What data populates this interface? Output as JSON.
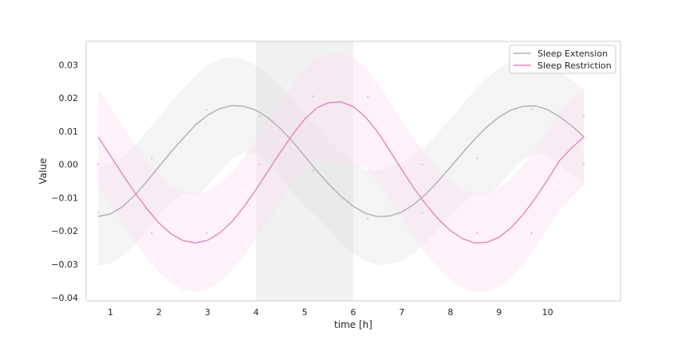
{
  "chart_data": {
    "type": "line",
    "title": "",
    "xlabel": "time [h]",
    "ylabel": "Value",
    "xlim": [
      0.5,
      11.5
    ],
    "ylim": [
      -0.041,
      0.037
    ],
    "x_ticks": [
      1,
      2,
      3,
      4,
      5,
      6,
      7,
      8,
      9,
      10
    ],
    "y_ticks": [
      0.03,
      0.02,
      0.01,
      0.0,
      -0.01,
      -0.02,
      -0.03,
      -0.04
    ],
    "y_tick_labels": [
      "0.03",
      "0.02",
      "0.01",
      "0.00",
      "−0.01",
      "−0.02",
      "−0.03",
      "−0.04"
    ],
    "grid": false,
    "legend_position": "upper right",
    "shaded_region": {
      "x_start": 4,
      "x_end": 6,
      "color": "#bdbdbd"
    },
    "series": [
      {
        "name": "Sleep Extension",
        "color": "#b3b3b3",
        "band_color": "#d9d9d9",
        "x": [
          0.75,
          1.0,
          1.25,
          1.5,
          1.75,
          2.0,
          2.25,
          2.5,
          2.75,
          3.0,
          3.25,
          3.5,
          3.75,
          4.0,
          4.25,
          4.5,
          4.75,
          5.0,
          5.25,
          5.5,
          5.75,
          6.0,
          6.25,
          6.5,
          6.75,
          7.0,
          7.25,
          7.5,
          7.75,
          8.0,
          8.25,
          8.5,
          8.75,
          9.0,
          9.25,
          9.5,
          9.75,
          10.0,
          10.25,
          10.5,
          10.75
        ],
        "y": [
          -0.0156,
          -0.0149,
          -0.0127,
          -0.0093,
          -0.0051,
          -0.0006,
          0.0038,
          0.0079,
          0.0119,
          0.0148,
          0.0168,
          0.0177,
          0.0175,
          0.0163,
          0.014,
          0.0108,
          0.0069,
          0.0025,
          -0.0019,
          -0.006,
          -0.0096,
          -0.0126,
          -0.0147,
          -0.0157,
          -0.0155,
          -0.0143,
          -0.012,
          -0.0088,
          -0.005,
          -0.0008,
          0.0035,
          0.0076,
          0.0113,
          0.0143,
          0.0164,
          0.0175,
          0.0176,
          0.0165,
          0.0143,
          0.0116,
          0.0083
        ],
        "lower": [
          -0.0305,
          -0.0298,
          -0.0276,
          -0.0242,
          -0.02,
          -0.0155,
          -0.0111,
          -0.0086,
          -0.0095,
          -0.0066,
          -0.0021,
          0.0016,
          0.0035,
          0.0029,
          0.0002,
          -0.004,
          -0.0085,
          -0.0125,
          -0.0155,
          -0.0195,
          -0.0237,
          -0.0268,
          -0.029,
          -0.0302,
          -0.03,
          -0.0289,
          -0.0266,
          -0.0234,
          -0.0196,
          -0.0154,
          -0.0115,
          -0.0088,
          -0.0092,
          -0.0064,
          -0.0021,
          0.0016,
          0.0034,
          0.0026,
          0.0,
          -0.0031,
          -0.0059
        ],
        "upper": [
          -0.0007,
          0.0,
          0.0022,
          0.0056,
          0.0098,
          0.0143,
          0.0187,
          0.0228,
          0.0268,
          0.0297,
          0.0317,
          0.0322,
          0.0315,
          0.0297,
          0.027,
          0.0238,
          0.0199,
          0.0155,
          0.0111,
          0.007,
          0.0034,
          0.0004,
          -0.0017,
          -0.002,
          -0.0006,
          0.0003,
          0.0026,
          0.0058,
          0.0096,
          0.0138,
          0.0181,
          0.0222,
          0.0259,
          0.029,
          0.0311,
          0.032,
          0.0318,
          0.0305,
          0.0281,
          0.0254,
          0.0225
        ],
        "points_x": [
          0.75,
          1.85,
          2.98,
          4.07,
          5.18,
          6.3,
          7.42,
          8.55,
          9.67,
          10.75
        ],
        "points_y": [
          -0.0145,
          0.0018,
          0.0165,
          0.0145,
          -0.0018,
          -0.0163,
          -0.0145,
          0.0018,
          0.0166,
          0.0145
        ]
      },
      {
        "name": "Sleep Restriction",
        "color": "#e78ac3",
        "band_color": "#fbe3f1",
        "x": [
          0.75,
          1.0,
          1.25,
          1.5,
          1.75,
          2.0,
          2.25,
          2.5,
          2.75,
          3.0,
          3.25,
          3.5,
          3.75,
          4.0,
          4.25,
          4.5,
          4.75,
          5.0,
          5.25,
          5.5,
          5.75,
          6.0,
          6.25,
          6.5,
          6.75,
          7.0,
          7.25,
          7.5,
          7.75,
          8.0,
          8.25,
          8.5,
          8.75,
          9.0,
          9.25,
          9.5,
          9.75,
          10.0,
          10.25,
          10.5,
          10.75
        ],
        "y": [
          0.0082,
          0.0026,
          -0.003,
          -0.0084,
          -0.0133,
          -0.0176,
          -0.0209,
          -0.0229,
          -0.0236,
          -0.0228,
          -0.0206,
          -0.0172,
          -0.0127,
          -0.0075,
          -0.0019,
          0.0037,
          0.009,
          0.0136,
          0.017,
          0.0186,
          0.0188,
          0.0174,
          0.0143,
          0.0098,
          0.0042,
          -0.0016,
          -0.0072,
          -0.0121,
          -0.0164,
          -0.0199,
          -0.0223,
          -0.0236,
          -0.0234,
          -0.0219,
          -0.019,
          -0.015,
          -0.0101,
          -0.0046,
          0.0012,
          0.005,
          0.0084
        ],
        "lower": [
          -0.0066,
          -0.0122,
          -0.0178,
          -0.0232,
          -0.0281,
          -0.0324,
          -0.0357,
          -0.0377,
          -0.0384,
          -0.0376,
          -0.0354,
          -0.032,
          -0.0275,
          -0.0223,
          -0.0167,
          -0.0111,
          -0.0058,
          -0.0016,
          0.0007,
          0.001,
          0.0005,
          0.0,
          -0.001,
          -0.005,
          -0.0106,
          -0.0164,
          -0.022,
          -0.0269,
          -0.0312,
          -0.0347,
          -0.0371,
          -0.0384,
          -0.0382,
          -0.0367,
          -0.0338,
          -0.0298,
          -0.0249,
          -0.0194,
          -0.0136,
          -0.0098,
          -0.0062
        ],
        "upper": [
          0.0228,
          0.0172,
          0.0116,
          0.0062,
          0.0013,
          -0.0028,
          -0.0061,
          -0.0081,
          -0.0088,
          -0.008,
          -0.0058,
          -0.0024,
          0.0021,
          0.0073,
          0.0129,
          0.0185,
          0.0238,
          0.0284,
          0.0318,
          0.0334,
          0.0336,
          0.0322,
          0.0291,
          0.0246,
          0.019,
          0.0132,
          0.0076,
          0.0027,
          -0.0016,
          -0.0051,
          -0.0075,
          -0.0088,
          -0.0086,
          -0.0071,
          -0.0042,
          -0.0002,
          0.0047,
          0.0102,
          0.016,
          0.0198,
          0.023
        ],
        "points_x": [
          0.75,
          1.85,
          2.98,
          4.07,
          5.18,
          6.3,
          7.42,
          8.55,
          9.67,
          10.75
        ],
        "points_y": [
          0.0,
          -0.0206,
          -0.0206,
          0.0,
          0.0205,
          0.0203,
          0.0,
          -0.0206,
          -0.0206,
          0.0
        ]
      }
    ]
  }
}
